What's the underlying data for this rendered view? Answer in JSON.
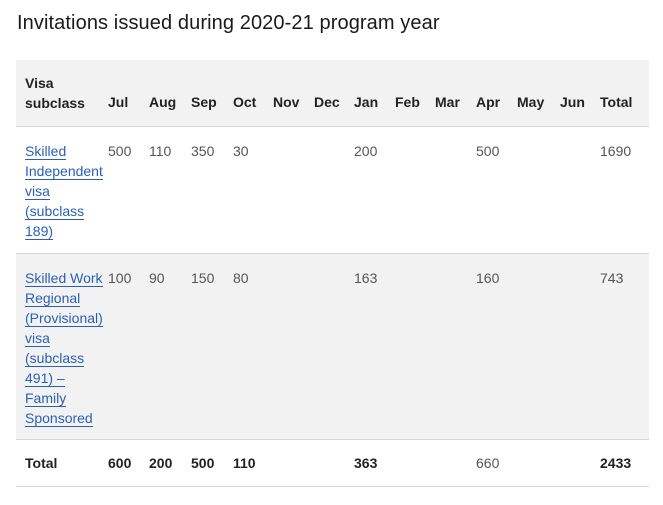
{
  "title": "Invitations issued during 2020-21 program year",
  "columns": [
    "Visa subclass",
    "Jul",
    "Aug",
    "Sep",
    "Oct",
    "Nov",
    "Dec",
    "Jan",
    "Feb",
    "Mar",
    "Apr",
    "May",
    "Jun",
    "Total"
  ],
  "header_first": [
    "Visa",
    "subclass"
  ],
  "rows": [
    {
      "link_lines": [
        "Skilled",
        "Independent",
        "visa",
        "(subclass",
        "189)"
      ],
      "values": [
        "500",
        "110",
        "350",
        "30",
        "",
        "",
        "200",
        "",
        "",
        "500",
        "",
        "",
        "1690"
      ]
    },
    {
      "link_lines": [
        "Skilled Work",
        "Regional",
        "(Provisional)",
        "visa",
        "(subclass",
        "491) –",
        "Family",
        "Sponsored"
      ],
      "values": [
        "100",
        "90",
        "150",
        "80",
        "",
        "",
        "163",
        "",
        "",
        "160",
        "",
        "",
        "743"
      ]
    }
  ],
  "total_row": {
    "label": "Total",
    "values": [
      "600",
      "200",
      "500",
      "110",
      "",
      "",
      "363",
      "",
      "",
      "660",
      "",
      "",
      "2433"
    ]
  },
  "colors": {
    "link": "#2b5fb5",
    "header_bg": "#f2f2f2",
    "border": "#d6d6d6"
  }
}
